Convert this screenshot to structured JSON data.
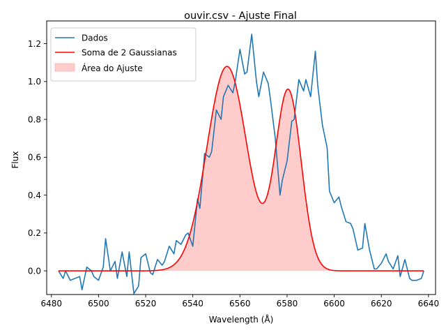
{
  "chart_data": {
    "type": "line",
    "title": "ouvir.csv - Ajuste Final",
    "xlabel": "Wavelength (Å)",
    "ylabel": "Flux",
    "xlim": [
      6478,
      6643
    ],
    "ylim": [
      -0.125,
      1.32
    ],
    "xticks": [
      6480,
      6500,
      6520,
      6540,
      6560,
      6580,
      6600,
      6620,
      6640
    ],
    "yticks": [
      0.0,
      0.2,
      0.4,
      0.6,
      0.8,
      1.0,
      1.2
    ],
    "grid": false,
    "legend_position": "top-left",
    "legend": [
      "Dados",
      "Soma de 2 Gaussianas",
      "Área do Ajuste"
    ],
    "colors": {
      "data": "#1f77b4",
      "fit": "#ff0000",
      "fill": "#ffcccc"
    },
    "fit_params": [
      {
        "amplitude": 1.08,
        "center": 6554.5,
        "sigma": 8.5
      },
      {
        "amplitude": 0.95,
        "center": 6580.5,
        "sigma": 5.5
      }
    ],
    "series": [
      {
        "name": "Dados",
        "x": [
          6483,
          6485,
          6486,
          6488,
          6490,
          6492,
          6493,
          6495,
          6497,
          6498,
          6500,
          6502,
          6503,
          6505,
          6507,
          6508,
          6510,
          6512,
          6513,
          6515,
          6517,
          6518,
          6520,
          6522,
          6523,
          6525,
          6527,
          6528,
          6530,
          6532,
          6533,
          6535,
          6537,
          6538,
          6540,
          6542,
          6543,
          6545,
          6547,
          6548,
          6550,
          6552,
          6553,
          6555,
          6557,
          6558,
          6560,
          6562,
          6563,
          6565,
          6567,
          6568,
          6570,
          6572,
          6573,
          6575,
          6577,
          6578,
          6580,
          6582,
          6583,
          6585,
          6587,
          6588,
          6590,
          6592,
          6593,
          6595,
          6597,
          6598,
          6600,
          6602,
          6603,
          6605,
          6607,
          6608,
          6610,
          6612,
          6613,
          6615,
          6617,
          6618,
          6620,
          6622,
          6623,
          6625,
          6627,
          6628,
          6630,
          6632,
          6633,
          6635,
          6637,
          6638
        ],
        "y": [
          0.0,
          -0.04,
          0.0,
          -0.05,
          -0.04,
          -0.03,
          -0.1,
          0.02,
          0.0,
          -0.03,
          -0.05,
          0.02,
          0.17,
          0.0,
          0.05,
          -0.04,
          0.1,
          -0.03,
          0.1,
          -0.12,
          -0.08,
          0.07,
          0.09,
          -0.01,
          -0.02,
          0.06,
          0.03,
          0.05,
          0.13,
          0.09,
          0.16,
          0.14,
          0.19,
          0.2,
          0.13,
          0.38,
          0.33,
          0.62,
          0.6,
          0.63,
          0.85,
          0.8,
          0.92,
          0.98,
          0.94,
          1.0,
          1.17,
          1.04,
          1.05,
          1.25,
          1.0,
          0.92,
          1.05,
          0.99,
          0.9,
          0.7,
          0.4,
          0.48,
          0.58,
          0.79,
          0.8,
          1.01,
          0.95,
          1.01,
          0.92,
          1.16,
          0.98,
          0.77,
          0.65,
          0.42,
          0.36,
          0.39,
          0.34,
          0.26,
          0.25,
          0.22,
          0.11,
          0.12,
          0.25,
          0.11,
          0.01,
          0.01,
          0.04,
          0.09,
          0.05,
          0.01,
          0.08,
          -0.03,
          0.06,
          -0.04,
          -0.05,
          -0.05,
          -0.04,
          0.0
        ]
      }
    ]
  }
}
